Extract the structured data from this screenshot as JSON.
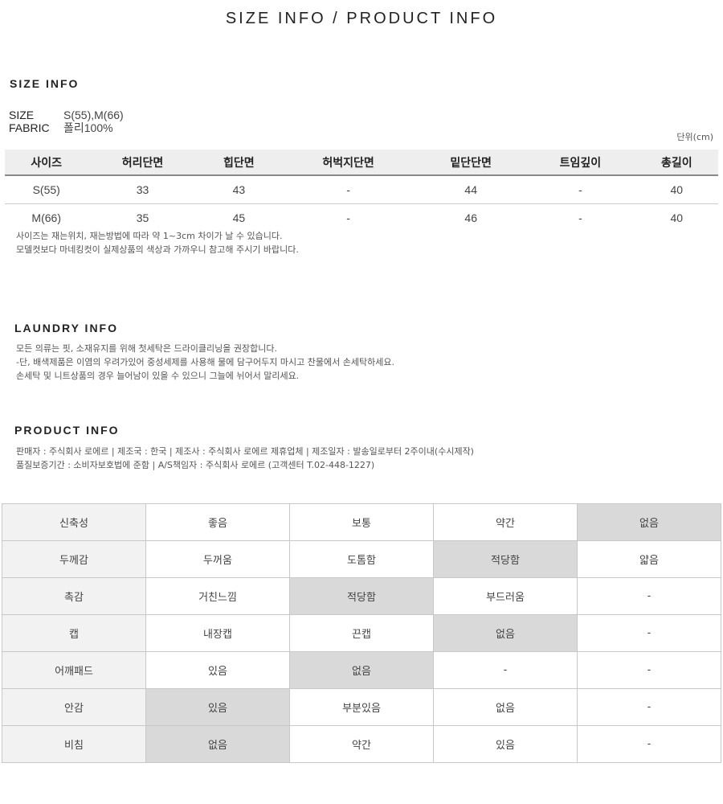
{
  "page_title": "SIZE INFO / PRODUCT INFO",
  "size_info": {
    "heading": "SIZE INFO",
    "size_label": "SIZE",
    "size_value": "S(55),M(66)",
    "fabric_label": "FABRIC",
    "fabric_value": "폴리100%",
    "unit": "단위(cm)",
    "columns": [
      "사이즈",
      "허리단면",
      "힙단면",
      "허벅지단면",
      "밑단단면",
      "트임깊이",
      "총길이"
    ],
    "rows": [
      [
        "S(55)",
        "33",
        "43",
        "-",
        "44",
        "-",
        "40"
      ],
      [
        "M(66)",
        "35",
        "45",
        "-",
        "46",
        "-",
        "40"
      ]
    ],
    "notes": [
      "사이즈는 재는위치, 재는방법에 따라 약 1~3cm 차이가 날 수 있습니다.",
      "모델컷보다 마네킹컷이 실제상품의 색상과 가까우니 참고해 주시기 바랍니다."
    ]
  },
  "laundry_info": {
    "heading": "LAUNDRY INFO",
    "lines": [
      "모든 의류는 핏, 소재유지를 위해 첫세탁은 드라이클리닝을 권장합니다.",
      "-단, 배색제품은 이염의 우려가있어 중성세제를 사용해 물에 담구어두지 마시고 찬물에서 손세탁하세요.",
      "손세탁 및 니트상품의 경우 늘어남이 있을 수 있으니 그늘에 뉘어서 말리세요."
    ]
  },
  "product_info": {
    "heading": "PRODUCT INFO",
    "lines": [
      "판매자 : 주식회사 로에르 | 제조국 : 한국 | 제조사 : 주식회사 로에르 제휴업체 | 제조일자 : 발송일로부터 2주이내(수시제작)",
      "품질보증기간 : 소비자보호법에 준함 | A/S책임자 : 주식회사 로에르 (고객센터 T.02-448-1227)"
    ]
  },
  "properties": [
    {
      "label": "신축성",
      "options": [
        "좋음",
        "보통",
        "약간",
        "없음"
      ],
      "selected": 3
    },
    {
      "label": "두께감",
      "options": [
        "두꺼움",
        "도톰함",
        "적당함",
        "얇음"
      ],
      "selected": 2
    },
    {
      "label": "촉감",
      "options": [
        "거친느낌",
        "적당함",
        "부드러움",
        "-"
      ],
      "selected": 1
    },
    {
      "label": "캡",
      "options": [
        "내장캡",
        "끈캡",
        "없음",
        "-"
      ],
      "selected": 2
    },
    {
      "label": "어깨패드",
      "options": [
        "있음",
        "없음",
        "-",
        "-"
      ],
      "selected": 1
    },
    {
      "label": "안감",
      "options": [
        "있음",
        "부분있음",
        "없음",
        "-"
      ],
      "selected": 0
    },
    {
      "label": "비침",
      "options": [
        "없음",
        "약간",
        "있음",
        "-"
      ],
      "selected": 0
    }
  ],
  "colors": {
    "label_bg": "#f2f2f2",
    "selected_bg": "#d9d9d9",
    "header_bg": "#eeeeee"
  }
}
